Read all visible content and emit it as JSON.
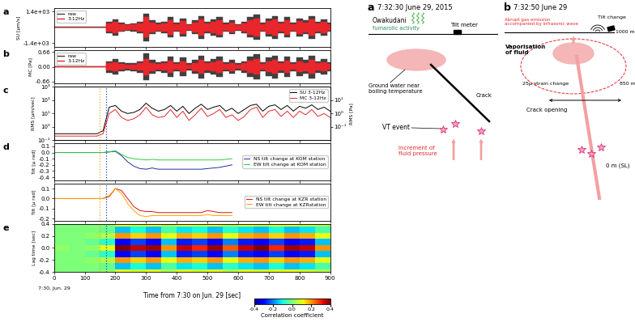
{
  "chart_data": [
    {
      "panel": "a",
      "type": "waveform",
      "ylabel": "SU [µm/s]",
      "xlim": [
        0,
        900
      ],
      "xticks": [
        0,
        100,
        200,
        300,
        400,
        500,
        600,
        700,
        800,
        900
      ],
      "ylim": [
        -1700,
        1700
      ],
      "yticks": [
        {
          "value": 1400,
          "label": "1.4e+03"
        },
        {
          "value": -1400,
          "label": "-1.4e+03"
        }
      ],
      "tick_labels": "y",
      "legend": "upper left",
      "x": [
        0,
        20,
        40,
        60,
        80,
        100,
        120,
        140,
        160,
        180,
        200,
        220,
        240,
        260,
        280,
        300,
        320,
        340,
        360,
        380,
        400,
        420,
        440,
        460,
        480,
        500,
        520,
        540,
        560,
        580,
        600,
        620,
        640,
        660,
        680,
        700,
        720,
        740,
        760,
        780,
        800,
        820,
        840,
        860,
        880,
        900
      ],
      "series": [
        {
          "name": "raw",
          "color": "#404040",
          "values": [
            30,
            30,
            30,
            30,
            30,
            30,
            30,
            30,
            40,
            500,
            700,
            400,
            300,
            350,
            500,
            1200,
            600,
            400,
            500,
            900,
            400,
            800,
            300,
            600,
            1000,
            500,
            700,
            900,
            400,
            600,
            300,
            500,
            900,
            1100,
            400,
            800,
            1000,
            500,
            900,
            400,
            800,
            600,
            1000,
            500,
            700,
            400
          ]
        },
        {
          "name": "3-12Hz",
          "color": "#e8262c",
          "values": [
            15,
            15,
            15,
            15,
            15,
            15,
            15,
            15,
            20,
            350,
            500,
            280,
            200,
            250,
            350,
            900,
            420,
            280,
            350,
            650,
            280,
            560,
            200,
            420,
            700,
            350,
            500,
            650,
            280,
            420,
            200,
            350,
            650,
            800,
            280,
            560,
            700,
            350,
            650,
            280,
            560,
            420,
            700,
            350,
            500,
            280
          ]
        }
      ]
    },
    {
      "panel": "b",
      "type": "waveform",
      "ylabel": "MC [Pa]",
      "xlim": [
        0,
        900
      ],
      "xticks": [
        0,
        100,
        200,
        300,
        400,
        500,
        600,
        700,
        800,
        900
      ],
      "ylim": [
        -0.75,
        0.75
      ],
      "yticks": [
        0.66,
        {
          "value": 0,
          "label": "0.00"
        },
        -0.66
      ],
      "tick_labels": "y",
      "legend": "upper left",
      "x": [
        0,
        20,
        40,
        60,
        80,
        100,
        120,
        140,
        160,
        180,
        200,
        220,
        240,
        260,
        280,
        300,
        320,
        340,
        360,
        380,
        400,
        420,
        440,
        460,
        480,
        500,
        520,
        540,
        560,
        580,
        600,
        620,
        640,
        660,
        680,
        700,
        720,
        740,
        760,
        780,
        800,
        820,
        840,
        860,
        880,
        900
      ],
      "series": [
        {
          "name": "raw",
          "color": "#404040",
          "values": [
            0.02,
            0.02,
            0.02,
            0.02,
            0.02,
            0.02,
            0.02,
            0.02,
            0.03,
            0.25,
            0.35,
            0.2,
            0.15,
            0.18,
            0.25,
            0.6,
            0.3,
            0.2,
            0.25,
            0.45,
            0.2,
            0.4,
            0.15,
            0.3,
            0.5,
            0.25,
            0.35,
            0.45,
            0.2,
            0.3,
            0.15,
            0.25,
            0.45,
            0.55,
            0.2,
            0.4,
            0.5,
            0.25,
            0.45,
            0.2,
            0.4,
            0.3,
            0.5,
            0.25,
            0.35,
            0.2
          ]
        },
        {
          "name": "3-12Hz",
          "color": "#e8262c",
          "values": [
            0.01,
            0.01,
            0.01,
            0.01,
            0.01,
            0.01,
            0.01,
            0.01,
            0.015,
            0.15,
            0.21,
            0.12,
            0.09,
            0.11,
            0.15,
            0.36,
            0.18,
            0.12,
            0.15,
            0.27,
            0.12,
            0.24,
            0.09,
            0.18,
            0.3,
            0.15,
            0.21,
            0.27,
            0.12,
            0.18,
            0.09,
            0.15,
            0.27,
            0.33,
            0.12,
            0.24,
            0.3,
            0.15,
            0.27,
            0.12,
            0.24,
            0.18,
            0.3,
            0.15,
            0.21,
            0.12
          ]
        }
      ]
    },
    {
      "panel": "c",
      "type": "line",
      "log": "y",
      "ylabel": "RMS [µm/sec]",
      "y2label": "RMS [Pa]",
      "xlim": [
        0,
        900
      ],
      "xticks": [
        0,
        100,
        200,
        300,
        400,
        500,
        600,
        700,
        800,
        900
      ],
      "ylim": [
        0.1,
        1000
      ],
      "yticks": [
        {
          "value": 0.1,
          "label": "10⁻¹"
        },
        {
          "value": 1,
          "label": "10⁰"
        },
        {
          "value": 10,
          "label": "10¹"
        },
        {
          "value": 100,
          "label": "10²"
        },
        {
          "value": 1000,
          "label": "10³"
        }
      ],
      "y2lim": [
        0.01,
        100
      ],
      "y2ticks": [
        {
          "value": 0.1,
          "label": "10⁻¹"
        },
        {
          "value": 1,
          "label": "10⁰"
        },
        {
          "value": 10,
          "label": "10¹"
        }
      ],
      "tick_labels": "y",
      "legend": "upper right",
      "vlines": [
        {
          "time": 150,
          "color": "#f5a623"
        },
        {
          "time": 170,
          "color": "#2040c0"
        }
      ],
      "x": [
        0,
        20,
        40,
        60,
        80,
        100,
        120,
        140,
        160,
        180,
        200,
        220,
        240,
        260,
        280,
        300,
        320,
        340,
        360,
        380,
        400,
        420,
        440,
        460,
        480,
        500,
        520,
        540,
        560,
        580,
        600,
        620,
        640,
        660,
        680,
        700,
        720,
        740,
        760,
        780,
        800,
        820,
        840,
        860,
        880,
        900
      ],
      "series": [
        {
          "name": "SU 3-12Hz",
          "color": "#000000",
          "values": [
            0.3,
            0.3,
            0.3,
            0.3,
            0.3,
            0.3,
            0.3,
            0.3,
            0.5,
            30,
            40,
            15,
            10,
            12,
            20,
            60,
            25,
            15,
            20,
            40,
            15,
            35,
            10,
            25,
            50,
            20,
            30,
            40,
            15,
            25,
            10,
            20,
            40,
            50,
            15,
            35,
            45,
            20,
            40,
            15,
            35,
            25,
            45,
            20,
            30,
            15
          ]
        },
        {
          "name": "MC 3-12Hz",
          "color": "#e8262c",
          "axis": "y2",
          "values": [
            0.02,
            0.02,
            0.02,
            0.02,
            0.02,
            0.02,
            0.02,
            0.02,
            0.03,
            1,
            2,
            0.5,
            0.3,
            0.4,
            0.8,
            3,
            0.8,
            0.5,
            0.6,
            2,
            0.5,
            1.5,
            0.3,
            0.8,
            2.5,
            0.6,
            1,
            2,
            0.5,
            0.8,
            0.3,
            0.6,
            2,
            3,
            0.5,
            1.5,
            2,
            0.6,
            1.5,
            0.5,
            1.5,
            0.8,
            2,
            0.6,
            1,
            0.5
          ]
        }
      ]
    },
    {
      "panel": "d",
      "type": "line",
      "ylabel": "Tilt [µ rad]",
      "xlim": [
        0,
        900
      ],
      "xticks": [
        0,
        100,
        200,
        300,
        400,
        500,
        600,
        700,
        800,
        900
      ],
      "ylim": [
        -0.45,
        0.15
      ],
      "yticks": [
        0.1,
        0.0,
        -0.1,
        -0.2,
        -0.3,
        -0.4
      ],
      "tick_labels": "y",
      "legend": "center right",
      "vlines": [
        {
          "time": 150,
          "color": "#f5a623"
        },
        {
          "time": 170,
          "color": "#2040c0"
        }
      ],
      "x": [
        0,
        20,
        40,
        60,
        80,
        100,
        120,
        140,
        160,
        180,
        200,
        220,
        240,
        260,
        280,
        300,
        320,
        340,
        360,
        380,
        400,
        420,
        440,
        460,
        480,
        500,
        520,
        540,
        560,
        580
      ],
      "series": [
        {
          "name": "NS tilt change at KOM station",
          "color": "#1f2f9e",
          "values": [
            0,
            0,
            0,
            0,
            0,
            0,
            0,
            0,
            0,
            0.01,
            0.02,
            -0.05,
            -0.15,
            -0.22,
            -0.26,
            -0.27,
            -0.25,
            -0.27,
            -0.27,
            -0.27,
            -0.27,
            -0.27,
            -0.27,
            -0.27,
            -0.27,
            -0.26,
            -0.25,
            -0.24,
            -0.22,
            -0.2
          ]
        },
        {
          "name": "EW tilt change at KOM station",
          "color": "#2ecc40",
          "values": [
            0,
            0,
            0,
            0,
            0,
            0,
            0,
            0,
            0,
            0.01,
            0.03,
            -0.03,
            -0.08,
            -0.1,
            -0.11,
            -0.12,
            -0.11,
            -0.12,
            -0.12,
            -0.12,
            -0.12,
            -0.12,
            -0.12,
            -0.12,
            -0.12,
            -0.12,
            -0.12,
            -0.12,
            -0.11,
            -0.1
          ]
        }
      ]
    },
    {
      "type": "line",
      "ylabel": "Tilt [µ rad]",
      "xlim": [
        0,
        900
      ],
      "xticks": [
        0,
        100,
        200,
        300,
        400,
        500,
        600,
        700,
        800,
        900
      ],
      "ylim": [
        -0.22,
        0.15
      ],
      "yticks": [
        0.1,
        0.0,
        -0.1,
        -0.2
      ],
      "tick_labels": "y",
      "legend": "center right",
      "vlines": [
        {
          "time": 150,
          "color": "#f5a623"
        },
        {
          "time": 170,
          "color": "#2040c0"
        }
      ],
      "x": [
        0,
        20,
        40,
        60,
        80,
        100,
        120,
        140,
        160,
        180,
        200,
        220,
        240,
        260,
        280,
        300,
        320,
        340,
        360,
        380,
        400,
        420,
        440,
        460,
        480,
        500,
        520,
        540,
        560,
        580
      ],
      "series": [
        {
          "name": "NS tilt change at KZR station",
          "color": "#e01010",
          "values": [
            0,
            0,
            0,
            0,
            0,
            0,
            0,
            0,
            0,
            0.02,
            0.1,
            0.08,
            0.0,
            -0.08,
            -0.12,
            -0.13,
            -0.13,
            -0.14,
            -0.14,
            -0.14,
            -0.14,
            -0.14,
            -0.14,
            -0.14,
            -0.14,
            -0.12,
            -0.13,
            -0.14,
            -0.14,
            -0.14
          ]
        },
        {
          "name": "EW tilt change at KZRstation",
          "color": "#ffa500",
          "values": [
            0,
            0,
            0,
            0,
            0,
            0,
            0,
            0,
            0,
            0.03,
            0.1,
            0.05,
            -0.05,
            -0.12,
            -0.17,
            -0.18,
            -0.17,
            -0.17,
            -0.17,
            -0.17,
            -0.17,
            -0.17,
            -0.17,
            -0.17,
            -0.17,
            -0.16,
            -0.17,
            -0.17,
            -0.17,
            -0.17
          ]
        }
      ]
    },
    {
      "panel": "e",
      "type": "heatmap",
      "ylabel": "Lag time [sec]",
      "xlabel": "Time from 7:30 on Jun. 29 [sec]",
      "x_origin_label": "7:30, Jun. 29",
      "xlim": [
        0,
        900
      ],
      "xticks": [
        0,
        100,
        200,
        300,
        400,
        500,
        600,
        700,
        800,
        900
      ],
      "ylim": [
        -0.4,
        0.4
      ],
      "yticks": [
        -0.4,
        -0.2,
        0.0,
        0.2,
        0.4
      ],
      "vlines": [
        {
          "time": 150,
          "color": "#f5a623"
        },
        {
          "time": 170,
          "color": "#2040c0"
        }
      ],
      "x_edges": [
        0,
        50,
        100,
        150,
        200,
        250,
        300,
        350,
        400,
        450,
        500,
        550,
        600,
        650,
        700,
        750,
        800,
        850,
        900
      ],
      "y_edges": [
        -0.45,
        -0.35,
        -0.25,
        -0.15,
        -0.05,
        0.05,
        0.15,
        0.25,
        0.35,
        0.45
      ],
      "cells": [
        [
          0,
          0,
          0,
          0.02,
          0.1,
          0.08,
          0.1,
          0.05,
          0.1,
          0.08,
          0.1,
          0.05,
          0.1,
          0.08,
          0.1,
          0.1,
          0.08,
          0.05
        ],
        [
          0,
          0,
          0,
          -0.02,
          -0.15,
          -0.1,
          -0.15,
          -0.05,
          -0.12,
          -0.1,
          -0.15,
          -0.08,
          -0.12,
          -0.15,
          -0.1,
          -0.15,
          -0.12,
          -0.05
        ],
        [
          0,
          0,
          0.02,
          0.05,
          0.2,
          0.15,
          0.2,
          0.1,
          0.18,
          0.15,
          0.2,
          0.1,
          0.18,
          0.2,
          0.15,
          0.2,
          0.18,
          0.1
        ],
        [
          0,
          0,
          -0.02,
          -0.08,
          -0.3,
          -0.25,
          -0.3,
          -0.15,
          -0.28,
          -0.25,
          -0.3,
          -0.2,
          -0.28,
          -0.3,
          -0.25,
          -0.3,
          -0.28,
          -0.15
        ],
        [
          0.02,
          0,
          0.02,
          0.1,
          0.4,
          0.35,
          0.38,
          0.2,
          0.35,
          0.3,
          0.38,
          0.25,
          0.35,
          0.4,
          0.3,
          0.38,
          0.35,
          0.2
        ],
        [
          0,
          0,
          -0.02,
          -0.08,
          -0.3,
          -0.25,
          -0.3,
          -0.15,
          -0.28,
          -0.25,
          -0.3,
          -0.2,
          -0.28,
          -0.3,
          -0.25,
          -0.3,
          -0.28,
          -0.15
        ],
        [
          0,
          0,
          0.02,
          0.05,
          0.2,
          0.15,
          0.2,
          0.1,
          0.18,
          0.15,
          0.2,
          0.1,
          0.18,
          0.2,
          0.15,
          0.2,
          0.18,
          0.1
        ],
        [
          0,
          0,
          0,
          -0.02,
          -0.15,
          -0.1,
          -0.15,
          -0.05,
          -0.12,
          -0.1,
          -0.15,
          -0.08,
          -0.12,
          -0.15,
          -0.1,
          -0.15,
          -0.12,
          -0.05
        ],
        [
          0,
          0,
          0,
          0.02,
          0.1,
          0.08,
          0.1,
          0.05,
          0.1,
          0.08,
          0.1,
          0.05,
          0.1,
          0.08,
          0.1,
          0.1,
          0.08,
          0.05
        ]
      ],
      "colorbar": {
        "label": "Correlation coefficient",
        "range": [
          -0.4,
          0.4
        ],
        "ticks": [
          -0.4,
          -0.2,
          0.0,
          0.2,
          0.4
        ]
      }
    }
  ],
  "diagram": {
    "a": {
      "label": "a",
      "time": "7:32:30 June 29, 2015",
      "place": "Owakudani",
      "activity": "fumarolic activity",
      "tiltmeter": "Tilt meter",
      "groundwater": "Ground water near\nboiling temperature",
      "crack": "Crack",
      "vt": "VT event",
      "pressure": "Increment of\nfluid pressure"
    },
    "b": {
      "label": "b",
      "time": "7:32:50 June 29",
      "emission": "Abrupt gas emission\naccompanied by infrasonic wave",
      "tilt": "Tilt change",
      "vapor": "Vaporisation\nof fluid",
      "top_elevation": "1000 m",
      "mid_elevation": "850 m",
      "strain": "25μ strain change",
      "opening": "Crack opening",
      "sea_level": "0 m (SL)"
    }
  }
}
